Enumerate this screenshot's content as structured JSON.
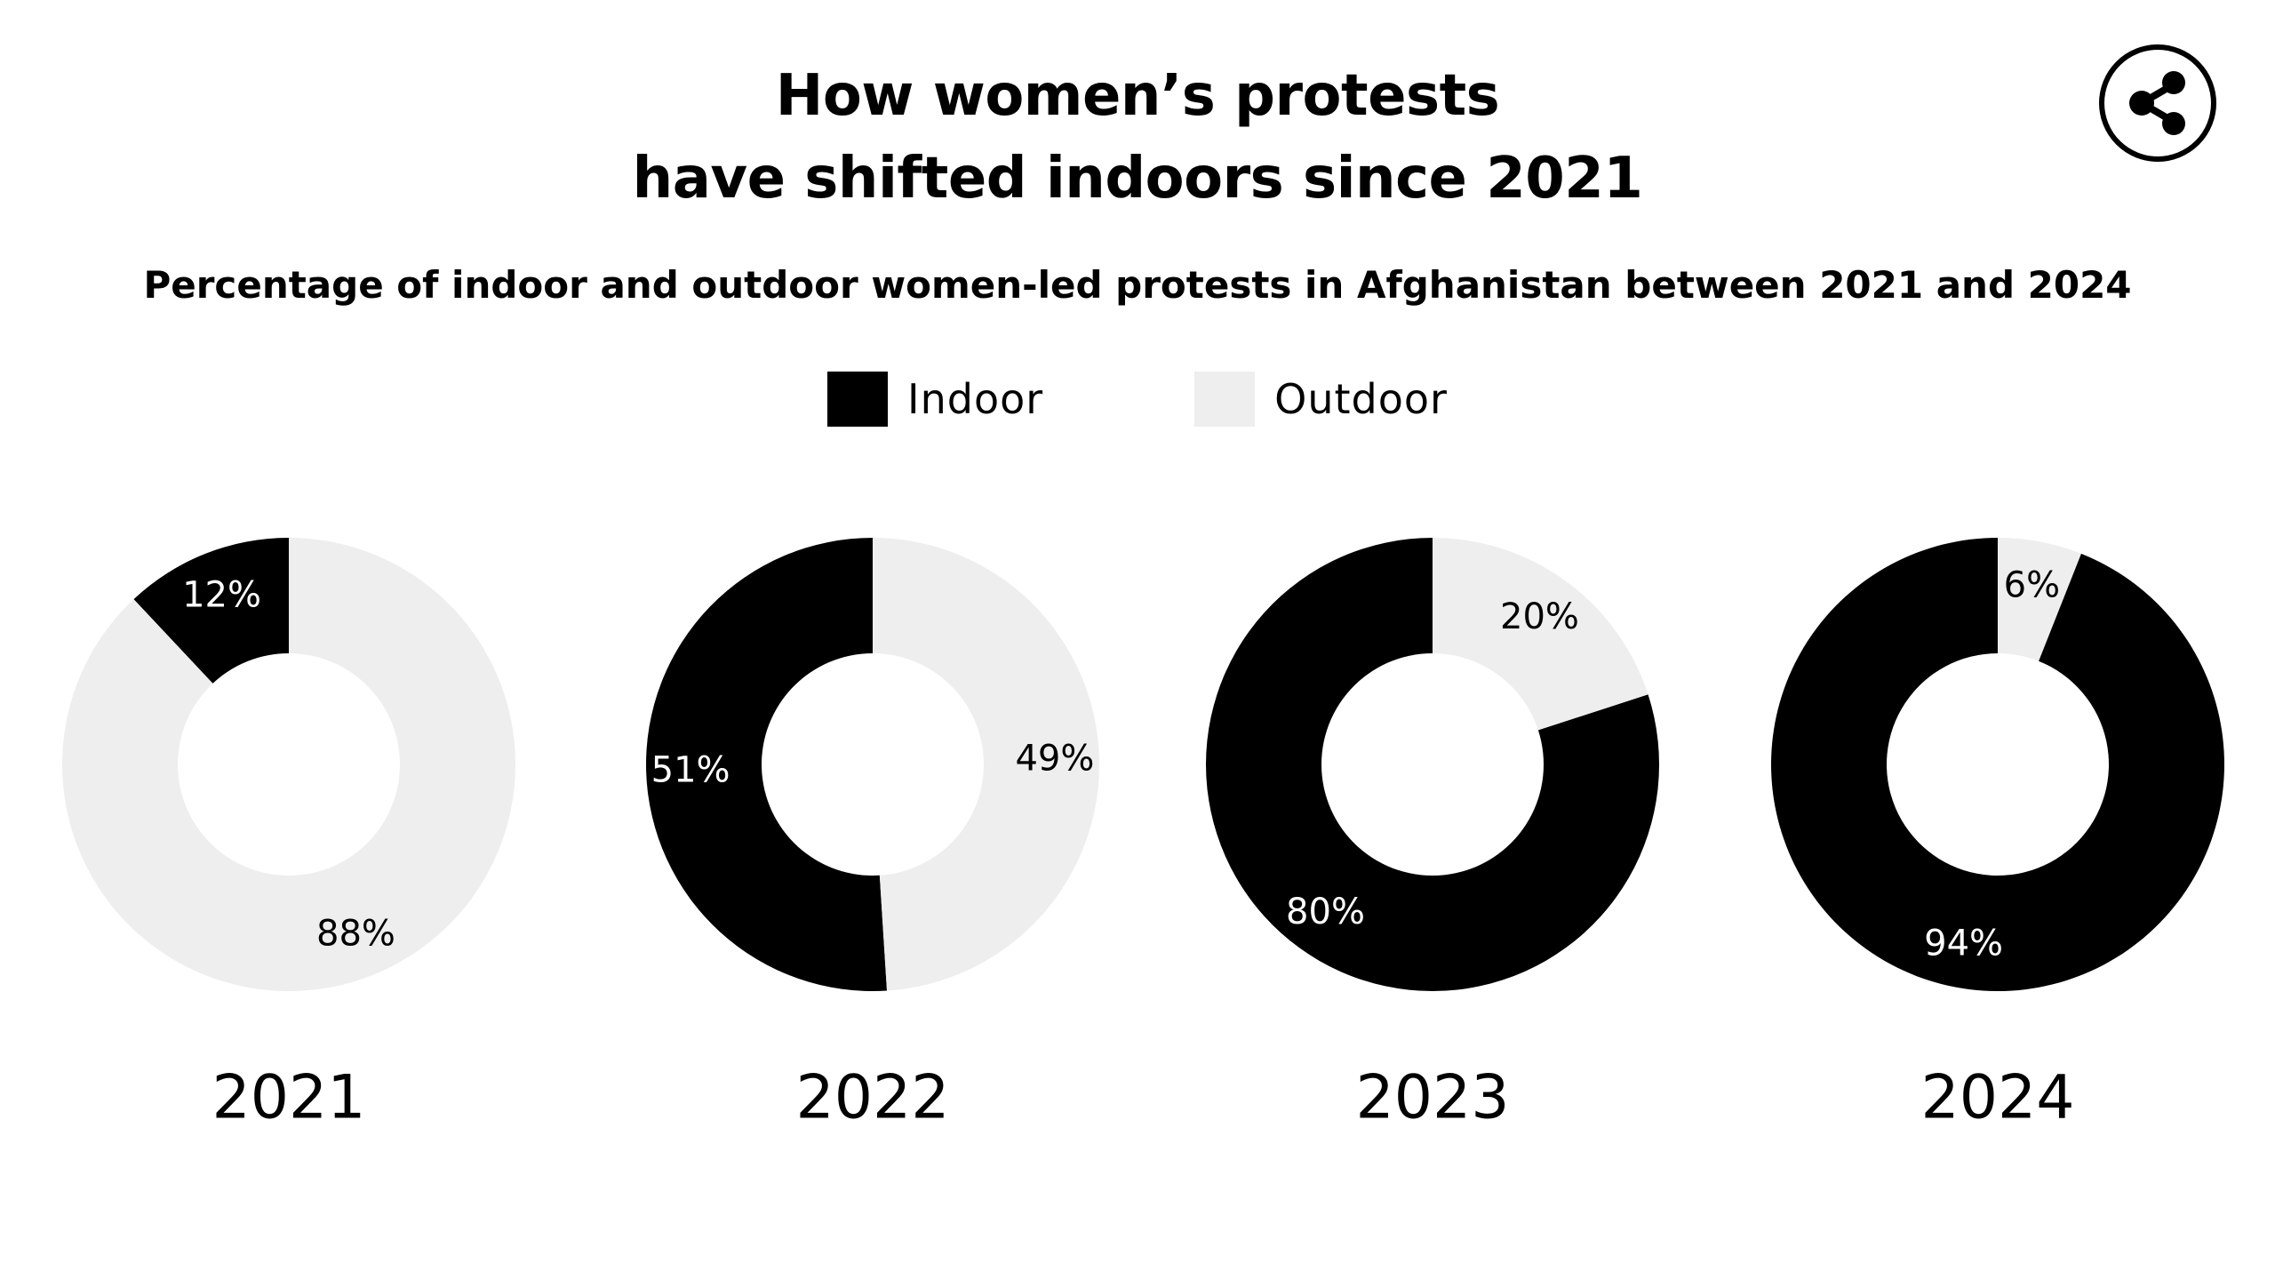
{
  "chart_data": {
    "type": "pie",
    "title": "How women’s protests have shifted indoors since 2021",
    "title_lines": [
      "How women’s protests",
      "have shifted indoors since 2021"
    ],
    "subtitle": "Percentage of indoor and outdoor women-led protests in Afghanistan between 2021 and 2024",
    "legend": [
      {
        "name": "Indoor",
        "color": "#000000"
      },
      {
        "name": "Outdoor",
        "color": "#eeeeee"
      }
    ],
    "legend_position": "top-center",
    "categories": [
      "2021",
      "2022",
      "2023",
      "2024"
    ],
    "series": [
      {
        "name": "Indoor",
        "color": "#000000",
        "values": [
          12,
          51,
          80,
          94
        ],
        "labels": [
          "12%",
          "51%",
          "80%",
          "94%"
        ]
      },
      {
        "name": "Outdoor",
        "color": "#eeeeee",
        "values": [
          88,
          49,
          20,
          6
        ],
        "labels": [
          "88%",
          "49%",
          "20%",
          "6%"
        ]
      }
    ],
    "unit": "%",
    "donut": true
  },
  "share_button": {
    "icon": "share-icon"
  }
}
